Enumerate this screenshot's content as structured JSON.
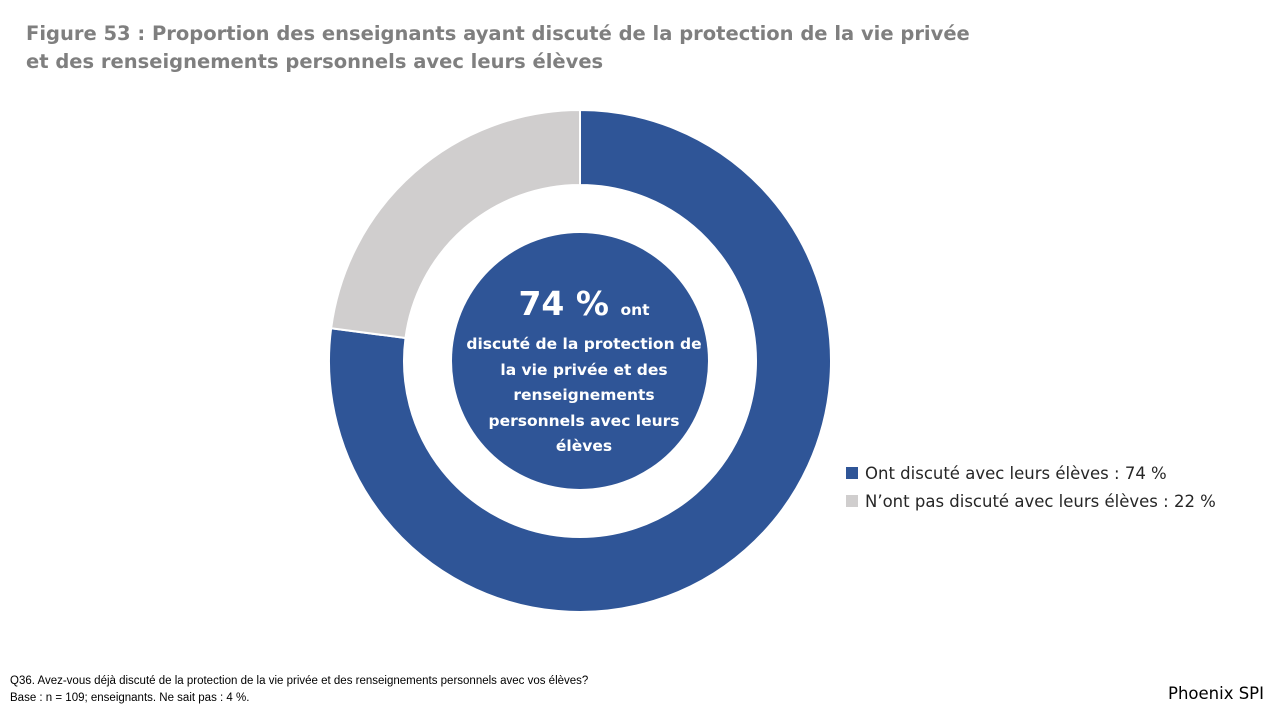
{
  "title": "Figure 53 : Proportion des enseignants ayant discuté de la protection de la vie privée et des renseignements personnels avec leurs élèves",
  "chart_data": {
    "type": "pie",
    "variant": "donut",
    "title": "Figure 53 : Proportion des enseignants ayant discuté de la protection de la vie privée et des renseignements personnels avec leurs élèves",
    "slices": [
      {
        "label": "Ont discuté avec leurs élèves : 74 %",
        "value": 74,
        "color": "#2f5597"
      },
      {
        "label": "N’ont pas discuté avec leurs élèves : 22 %",
        "value": 22,
        "color": "#d0cece"
      }
    ],
    "center_label": {
      "value": "74 %",
      "suffix": "ont",
      "text": "discuté de la protection de la vie privée et des renseignements personnels avec leurs élèves",
      "color": "#2f5597"
    },
    "legend_position": "right"
  },
  "footnote": {
    "question": "Q36. Avez-vous déjà discuté de la protection de la vie privée et des renseignements personnels avec vos élèves?",
    "base": "Base : n = 109; enseignants. Ne sait pas : 4 %."
  },
  "brand": "Phoenix SPI"
}
